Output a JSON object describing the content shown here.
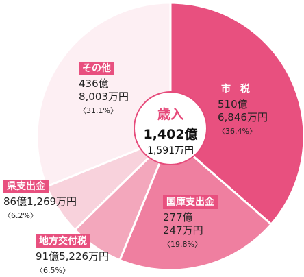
{
  "chart_data": {
    "type": "pie",
    "title": "歳入",
    "total_line1": "1,402億",
    "total_line2": "1,591万円",
    "slices": [
      {
        "tag": "市　税",
        "line1": "510億",
        "line2": "6,846万円",
        "percent_label": "〈36.4%〉",
        "value": 36.4,
        "color": "#e8507f",
        "tag_color": "#e8507f"
      },
      {
        "tag": "国庫支出金",
        "line1": "277億",
        "line2": "247万円",
        "percent_label": "〈19.8%〉",
        "value": 19.8,
        "color": "#ef7fa0",
        "tag_color": "#e8507f"
      },
      {
        "tag": "地方交付税",
        "line1": "91億5,226万円",
        "line2": "",
        "percent_label": "〈6.5%〉",
        "value": 6.5,
        "color": "#f3a7bc",
        "tag_color": "#e8507f"
      },
      {
        "tag": "県支出金",
        "line1": "86億1,269万円",
        "line2": "",
        "percent_label": "〈6.2%〉",
        "value": 6.2,
        "color": "#f8d2dc",
        "tag_color": "#e8507f"
      },
      {
        "tag": "その他",
        "line1": "436億",
        "line2": "8,003万円",
        "percent_label": "〈31.1%〉",
        "value": 31.1,
        "color": "#fdeff3",
        "tag_color": "#e8507f"
      }
    ]
  }
}
